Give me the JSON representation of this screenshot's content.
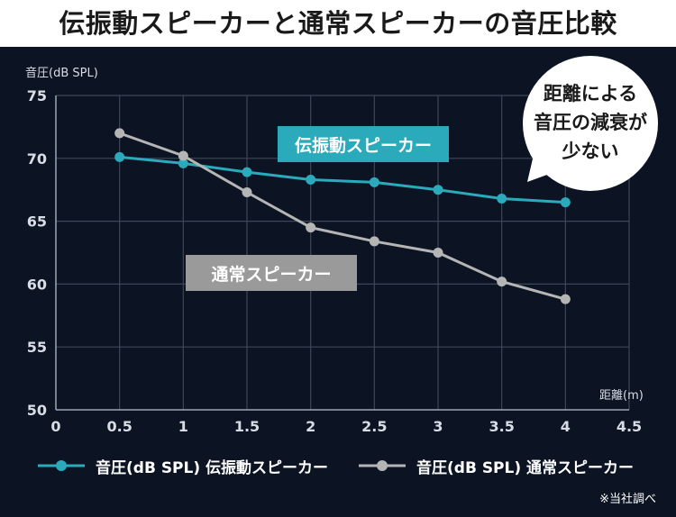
{
  "page": {
    "title": "伝振動スピーカーと通常スピーカーの音圧比較",
    "note": "※当社調べ"
  },
  "annotations": {
    "callout": [
      "距離による",
      "音圧の減衰が",
      "少ない"
    ],
    "vib_label": "伝振動スピーカー",
    "std_label": "通常スピーカー"
  },
  "colors": {
    "background": "#0c1424",
    "series_vib": "#2aaabb",
    "series_std": "#b5b5b5",
    "grid": "#3c4658"
  },
  "chart_data": {
    "type": "line",
    "ylabel": "音圧(dB SPL)",
    "xlabel": "距離(m)",
    "xlim": [
      0,
      4.5
    ],
    "ylim": [
      50,
      75
    ],
    "xticks": [
      "0",
      "0.5",
      "1",
      "1.5",
      "2",
      "2.5",
      "3",
      "3.5",
      "4",
      "4.5"
    ],
    "yticks": [
      "50",
      "55",
      "60",
      "65",
      "70",
      "75"
    ],
    "grid": true,
    "legend_position": "bottom",
    "x": [
      0.5,
      1,
      1.5,
      2,
      2.5,
      3,
      3.5,
      4
    ],
    "series": [
      {
        "name": "音圧(dB SPL) 伝振動スピーカー",
        "values": [
          70.1,
          69.6,
          68.9,
          68.3,
          68.1,
          67.5,
          66.8,
          66.5
        ]
      },
      {
        "name": "音圧(dB SPL) 通常スピーカー",
        "values": [
          72.0,
          70.2,
          67.3,
          64.5,
          63.4,
          62.5,
          60.2,
          58.8
        ]
      }
    ]
  }
}
